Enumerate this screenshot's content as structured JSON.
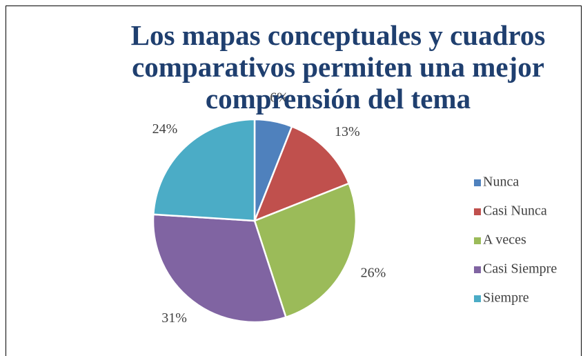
{
  "chart_data": {
    "type": "pie",
    "title": "Los mapas conceptuales y cuadros comparativos permiten una mejor comprensión del tema",
    "categories": [
      "Nunca",
      "Casi Nunca",
      "A veces",
      "Casi Siempre",
      "Siempre"
    ],
    "values": [
      6,
      13,
      26,
      31,
      24
    ],
    "value_labels": [
      "6%",
      "13%",
      "26%",
      "31%",
      "24%"
    ],
    "colors": [
      "#4f81bd",
      "#c0504d",
      "#9bbb59",
      "#8064a2",
      "#4bacc6"
    ],
    "legend": "right"
  }
}
